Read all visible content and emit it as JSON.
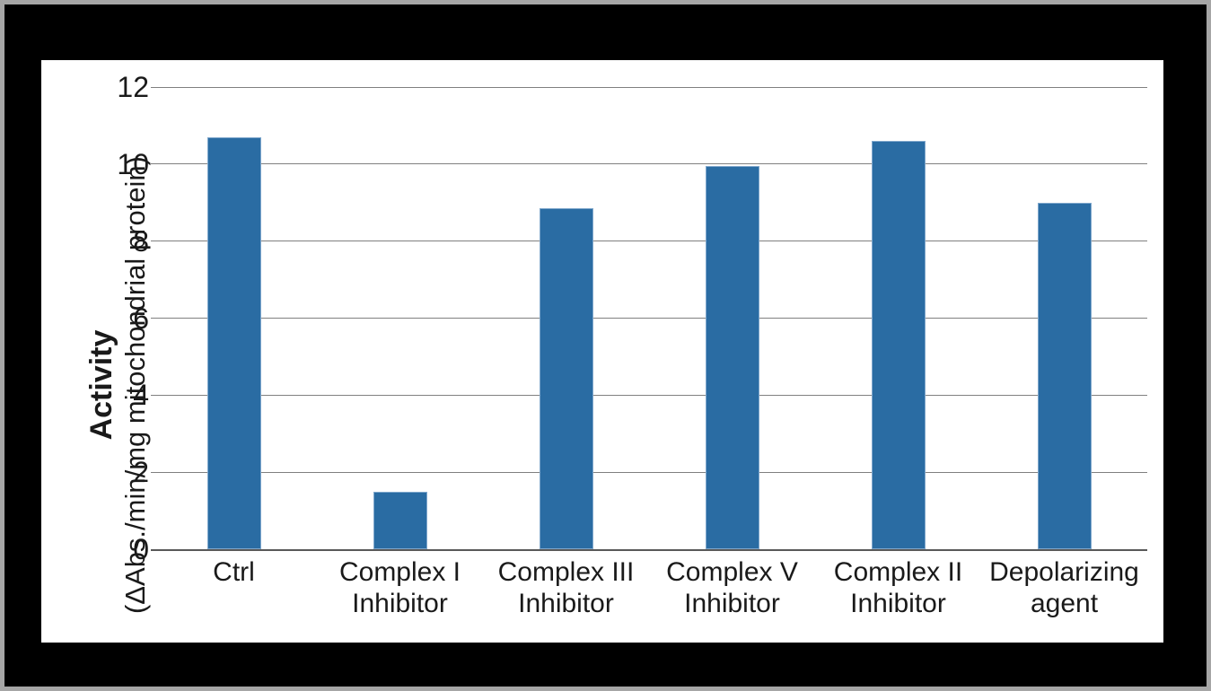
{
  "figure": {
    "background_color": "#000000",
    "frame_color": "#A6A6A6",
    "panel_color": "#FFFFFF"
  },
  "chart_data": {
    "type": "bar",
    "title": "",
    "categories": [
      "Ctrl",
      "Complex I\nInhibitor",
      "Complex III\nInhibitor",
      "Complex V\nInhibitor",
      "Complex II\nInhibitor",
      "Depolarizing\nagent"
    ],
    "values": [
      10.7,
      1.5,
      8.85,
      9.95,
      10.6,
      9.0
    ],
    "xlabel": "",
    "ylabel": "Activity (ΔAbs./min/mg mitochondrial protein)",
    "ylabel_line1": "Activity",
    "ylabel_line2": "(ΔAbs./min/mg mitochondrial protein)",
    "yticks": [
      0,
      2,
      4,
      6,
      8,
      10,
      12
    ],
    "ylim": [
      0,
      12
    ],
    "grid": "horizontal",
    "legend": "none",
    "colors": {
      "bar": "#2A6CA3",
      "bar_border": "#7FA7CC",
      "gridline": "#808080",
      "zero_axis": "#595959",
      "text": "#1A1A1A"
    }
  }
}
